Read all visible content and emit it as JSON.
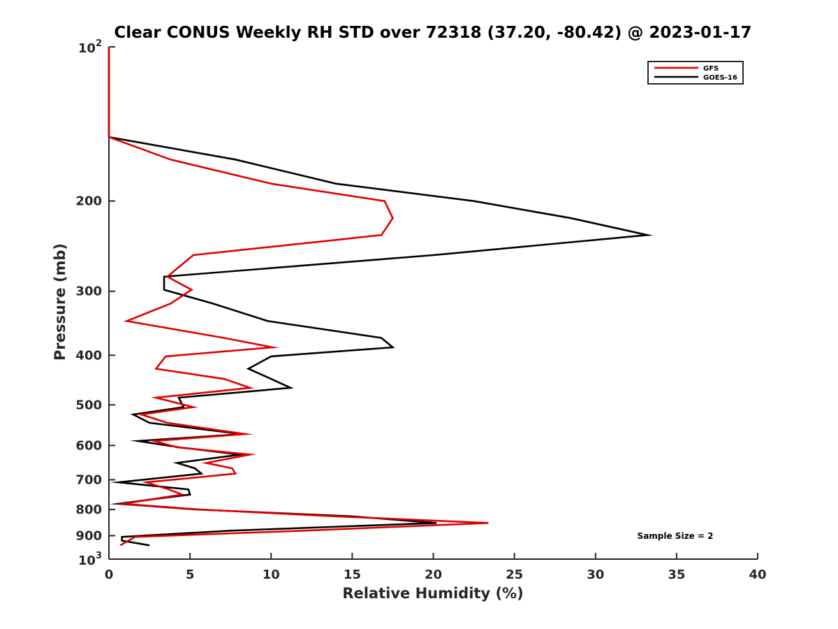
{
  "chart_data": {
    "type": "line",
    "title": "Clear CONUS Weekly RH STD over 72318 (37.20, -80.42) @ 2023-01-17",
    "xlabel": "Relative Humidity (%)",
    "ylabel": "Pressure (mb)",
    "xlim": [
      0,
      40
    ],
    "ylim": [
      100,
      1000
    ],
    "y_scale": "log",
    "y_reversed": true,
    "grid": false,
    "legend_position": "top-right",
    "x_ticks": [
      0,
      5,
      10,
      15,
      20,
      25,
      30,
      35,
      40
    ],
    "y_ticks": [
      200,
      300,
      400,
      500,
      600,
      700,
      800,
      900
    ],
    "y_tick_labels": [
      "200",
      "300",
      "400",
      "500",
      "600",
      "700",
      "800",
      "900"
    ],
    "y_end_labels": {
      "top_base": "10",
      "top_exp": "2",
      "bottom_base": "10",
      "bottom_exp": "3"
    },
    "annotation": "Sample Size = 2",
    "series": [
      {
        "name": "GFS",
        "color": "#e00000",
        "points": [
          [
            0,
            100
          ],
          [
            0,
            150
          ],
          [
            3.8,
            166
          ],
          [
            10,
            185
          ],
          [
            17,
            200
          ],
          [
            17.5,
            216
          ],
          [
            16.8,
            233
          ],
          [
            5.2,
            255
          ],
          [
            3.6,
            281
          ],
          [
            5.1,
            298
          ],
          [
            3.8,
            317
          ],
          [
            1.1,
            343
          ],
          [
            7.1,
            370
          ],
          [
            10.1,
            386
          ],
          [
            3.5,
            402
          ],
          [
            2.9,
            425
          ],
          [
            7.1,
            445
          ],
          [
            8.7,
            463
          ],
          [
            2.9,
            484
          ],
          [
            5.2,
            505
          ],
          [
            2,
            522
          ],
          [
            3.6,
            542
          ],
          [
            8.4,
            570
          ],
          [
            2.8,
            588
          ],
          [
            4.2,
            605
          ],
          [
            8.7,
            625
          ],
          [
            6,
            649
          ],
          [
            7.6,
            665
          ],
          [
            7.8,
            681
          ],
          [
            2.3,
            708
          ],
          [
            3.7,
            731
          ],
          [
            4.5,
            748
          ],
          [
            2.3,
            767
          ],
          [
            0.9,
            780
          ],
          [
            5.6,
            800
          ],
          [
            14,
            825
          ],
          [
            23.4,
            850
          ],
          [
            12,
            880
          ],
          [
            1.6,
            905
          ],
          [
            0.7,
            940
          ]
        ]
      },
      {
        "name": "GOES-16",
        "color": "#000000",
        "points": [
          [
            0,
            100
          ],
          [
            0,
            150
          ],
          [
            7.8,
            166
          ],
          [
            14,
            185
          ],
          [
            22.5,
            200
          ],
          [
            28.5,
            216
          ],
          [
            33.2,
            233
          ],
          [
            20,
            255
          ],
          [
            3.4,
            281
          ],
          [
            3.4,
            298
          ],
          [
            6.4,
            317
          ],
          [
            9.8,
            343
          ],
          [
            16.8,
            370
          ],
          [
            17.5,
            386
          ],
          [
            10,
            402
          ],
          [
            8.6,
            425
          ],
          [
            10,
            445
          ],
          [
            11.2,
            463
          ],
          [
            4.3,
            484
          ],
          [
            4.6,
            505
          ],
          [
            1.5,
            522
          ],
          [
            2.5,
            542
          ],
          [
            8.2,
            570
          ],
          [
            1.8,
            588
          ],
          [
            4.3,
            605
          ],
          [
            8.1,
            625
          ],
          [
            4.2,
            649
          ],
          [
            5.3,
            665
          ],
          [
            5.7,
            681
          ],
          [
            0.6,
            708
          ],
          [
            4.9,
            731
          ],
          [
            5,
            748
          ],
          [
            2.3,
            767
          ],
          [
            0.6,
            780
          ],
          [
            5.4,
            800
          ],
          [
            15,
            825
          ],
          [
            20.2,
            850
          ],
          [
            7.5,
            880
          ],
          [
            0.8,
            905
          ],
          [
            0.8,
            920
          ],
          [
            2.5,
            940
          ]
        ]
      }
    ]
  }
}
